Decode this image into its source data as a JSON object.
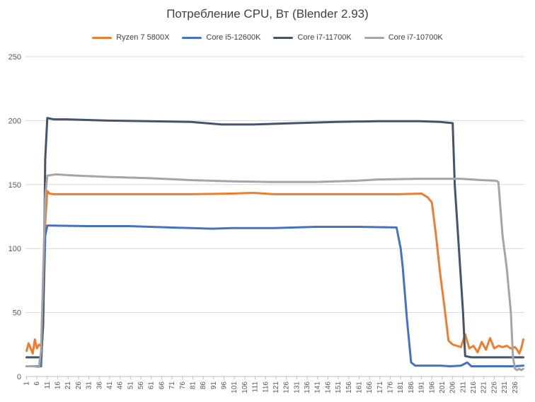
{
  "chart_data": {
    "type": "line",
    "title": "Потребление CPU, Вт (Blender 2.93)",
    "xlabel": "",
    "ylabel": "",
    "ylim": [
      0,
      250
    ],
    "yticks": [
      0,
      50,
      100,
      150,
      200,
      250
    ],
    "xlim": [
      1,
      240
    ],
    "xticks": [
      1,
      6,
      11,
      16,
      21,
      26,
      31,
      36,
      41,
      46,
      51,
      56,
      61,
      66,
      71,
      76,
      81,
      86,
      91,
      96,
      101,
      106,
      111,
      116,
      121,
      126,
      131,
      136,
      141,
      146,
      151,
      156,
      161,
      166,
      171,
      176,
      181,
      186,
      191,
      196,
      201,
      206,
      211,
      216,
      221,
      226,
      231,
      236
    ],
    "grid": true,
    "legend_position": "top",
    "series": [
      {
        "name": "Ryzen 7 5800X",
        "color": "#ED7D31",
        "points": [
          [
            1,
            20
          ],
          [
            2,
            26
          ],
          [
            3,
            22
          ],
          [
            4,
            18
          ],
          [
            5,
            29
          ],
          [
            6,
            22
          ],
          [
            7,
            25
          ],
          [
            8,
            24
          ],
          [
            9,
            55
          ],
          [
            10,
            120
          ],
          [
            11,
            145
          ],
          [
            12,
            143
          ],
          [
            14,
            142.5
          ],
          [
            20,
            142.5
          ],
          [
            40,
            142.5
          ],
          [
            60,
            142.5
          ],
          [
            80,
            142.5
          ],
          [
            100,
            143
          ],
          [
            110,
            143.5
          ],
          [
            120,
            142.5
          ],
          [
            140,
            142.5
          ],
          [
            160,
            142.5
          ],
          [
            180,
            142.5
          ],
          [
            191,
            143
          ],
          [
            194,
            140
          ],
          [
            196,
            136
          ],
          [
            198,
            110
          ],
          [
            200,
            80
          ],
          [
            202,
            55
          ],
          [
            204,
            28
          ],
          [
            206,
            25
          ],
          [
            208,
            24
          ],
          [
            210,
            23
          ],
          [
            212,
            33
          ],
          [
            214,
            22
          ],
          [
            216,
            24
          ],
          [
            218,
            19
          ],
          [
            220,
            27
          ],
          [
            222,
            21
          ],
          [
            224,
            30
          ],
          [
            226,
            22
          ],
          [
            228,
            24
          ],
          [
            230,
            23
          ],
          [
            232,
            24
          ],
          [
            234,
            22
          ],
          [
            236,
            23
          ],
          [
            237,
            21
          ],
          [
            238,
            18
          ],
          [
            239,
            22
          ],
          [
            240,
            29
          ]
        ]
      },
      {
        "name": "Core i5-12600K",
        "color": "#4472C4",
        "points": [
          [
            1,
            8
          ],
          [
            3,
            8
          ],
          [
            6,
            8
          ],
          [
            8,
            8
          ],
          [
            9,
            45
          ],
          [
            10,
            110
          ],
          [
            11,
            118
          ],
          [
            30,
            117.5
          ],
          [
            50,
            117.5
          ],
          [
            70,
            116.5
          ],
          [
            90,
            115.5
          ],
          [
            100,
            116
          ],
          [
            120,
            116
          ],
          [
            140,
            117
          ],
          [
            160,
            117
          ],
          [
            179,
            116.5
          ],
          [
            181,
            100
          ],
          [
            182,
            85
          ],
          [
            184,
            45
          ],
          [
            186,
            11
          ],
          [
            188,
            8.5
          ],
          [
            200,
            8.5
          ],
          [
            205,
            8
          ],
          [
            210,
            8.5
          ],
          [
            213,
            11
          ],
          [
            215,
            8
          ],
          [
            230,
            8
          ],
          [
            236,
            8
          ],
          [
            240,
            8.5
          ]
        ]
      },
      {
        "name": "Core i7-11700K",
        "color": "#44546A",
        "points": [
          [
            1,
            15
          ],
          [
            6,
            15
          ],
          [
            8,
            15
          ],
          [
            9,
            40
          ],
          [
            10,
            170
          ],
          [
            11,
            202
          ],
          [
            14,
            201
          ],
          [
            20,
            201
          ],
          [
            40,
            200
          ],
          [
            60,
            199.5
          ],
          [
            80,
            199
          ],
          [
            95,
            197
          ],
          [
            110,
            197
          ],
          [
            130,
            198
          ],
          [
            150,
            199
          ],
          [
            170,
            199.5
          ],
          [
            190,
            199.5
          ],
          [
            200,
            199
          ],
          [
            206,
            198
          ],
          [
            207,
            150
          ],
          [
            209,
            100
          ],
          [
            211,
            50
          ],
          [
            212,
            16
          ],
          [
            215,
            15
          ],
          [
            240,
            15
          ]
        ]
      },
      {
        "name": "Core i7-10700K",
        "color": "#A5A5A5",
        "points": [
          [
            1,
            8
          ],
          [
            4,
            8
          ],
          [
            7,
            7.5
          ],
          [
            8,
            20
          ],
          [
            9,
            80
          ],
          [
            10,
            140
          ],
          [
            11,
            157
          ],
          [
            15,
            158
          ],
          [
            25,
            157
          ],
          [
            40,
            156
          ],
          [
            60,
            155
          ],
          [
            80,
            153.5
          ],
          [
            100,
            152.5
          ],
          [
            120,
            152
          ],
          [
            140,
            152
          ],
          [
            160,
            153
          ],
          [
            170,
            154
          ],
          [
            190,
            154.5
          ],
          [
            210,
            154.5
          ],
          [
            220,
            153.5
          ],
          [
            227,
            153
          ],
          [
            228,
            152
          ],
          [
            230,
            110
          ],
          [
            232,
            85
          ],
          [
            234,
            50
          ],
          [
            235,
            15
          ],
          [
            236,
            6
          ],
          [
            237,
            5
          ],
          [
            238,
            6
          ],
          [
            239,
            5
          ],
          [
            240,
            6
          ]
        ]
      }
    ]
  }
}
